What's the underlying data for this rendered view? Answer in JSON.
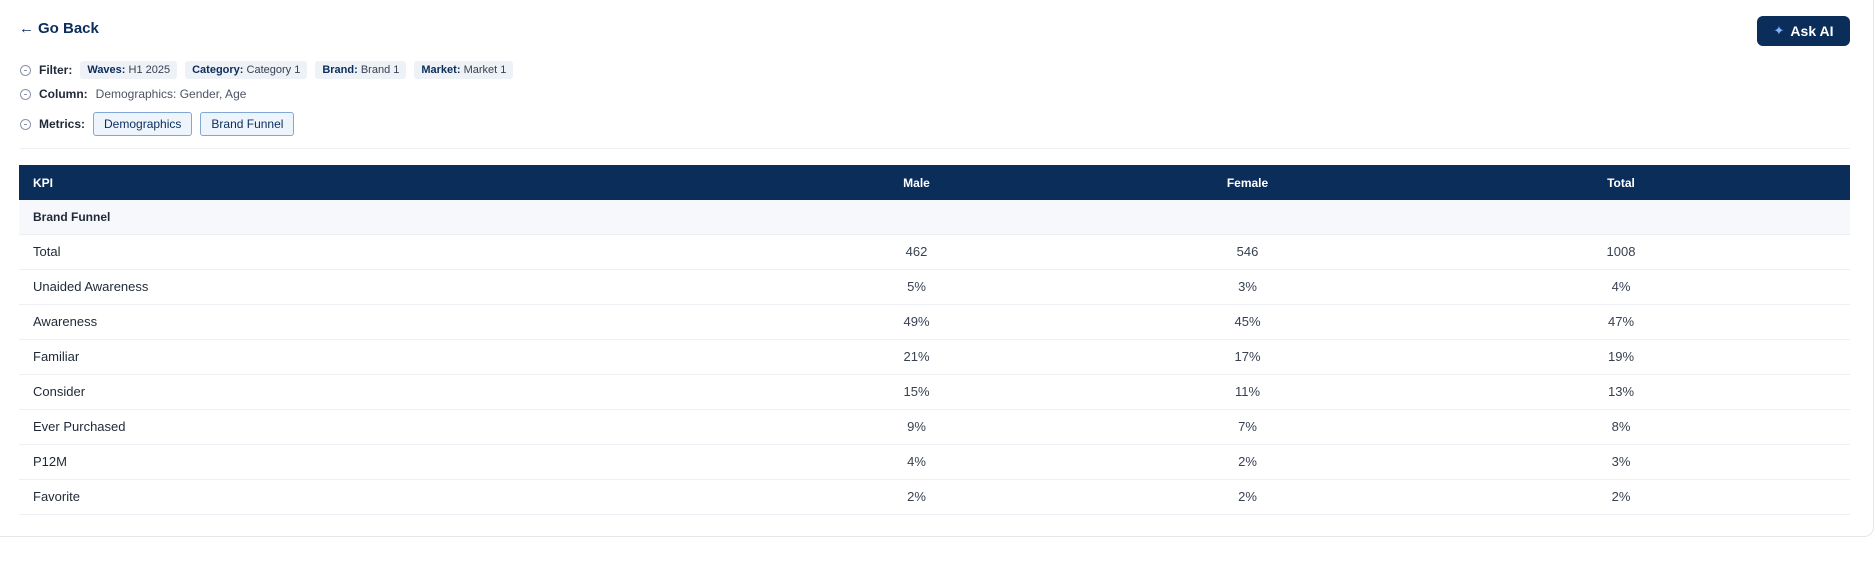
{
  "header": {
    "go_back_arrow": "←",
    "go_back_label": "Go Back",
    "ask_ai_icon": "✦",
    "ask_ai_label": "Ask AI"
  },
  "filter": {
    "label": "Filter:",
    "chips": [
      {
        "key": "Waves:",
        "value": "H1 2025"
      },
      {
        "key": "Category:",
        "value": "Category 1"
      },
      {
        "key": "Brand:",
        "value": "Brand 1"
      },
      {
        "key": "Market:",
        "value": "Market 1"
      }
    ]
  },
  "column": {
    "label": "Column:",
    "value": "Demographics: Gender, Age"
  },
  "metrics": {
    "label": "Metrics:",
    "items": [
      "Demographics",
      "Brand Funnel"
    ]
  },
  "colors": {
    "header_bg": "#0b2d5a",
    "positive": "#16a34a",
    "negative": "#dc2626"
  },
  "table": {
    "headers": [
      "KPI",
      "Male",
      "Female",
      "Total"
    ],
    "section": "Brand Funnel",
    "rows": [
      {
        "kpi": "Total",
        "male": "462",
        "female": "546",
        "total": "1008",
        "male_tone": "neu",
        "female_tone": "neu"
      },
      {
        "kpi": "Unaided Awareness",
        "male": "5%",
        "female": "3%",
        "total": "4%",
        "male_tone": "pos",
        "female_tone": "neg"
      },
      {
        "kpi": "Awareness",
        "male": "49%",
        "female": "45%",
        "total": "47%",
        "male_tone": "pos",
        "female_tone": "neg"
      },
      {
        "kpi": "Familiar",
        "male": "21%",
        "female": "17%",
        "total": "19%",
        "male_tone": "pos",
        "female_tone": "neg"
      },
      {
        "kpi": "Consider",
        "male": "15%",
        "female": "11%",
        "total": "13%",
        "male_tone": "pos",
        "female_tone": "neg"
      },
      {
        "kpi": "Ever Purchased",
        "male": "9%",
        "female": "7%",
        "total": "8%",
        "male_tone": "neu",
        "female_tone": "neg"
      },
      {
        "kpi": "P12M",
        "male": "4%",
        "female": "2%",
        "total": "3%",
        "male_tone": "pos",
        "female_tone": "neg"
      },
      {
        "kpi": "Favorite",
        "male": "2%",
        "female": "2%",
        "total": "2%",
        "male_tone": "neu",
        "female_tone": "neu"
      }
    ]
  }
}
